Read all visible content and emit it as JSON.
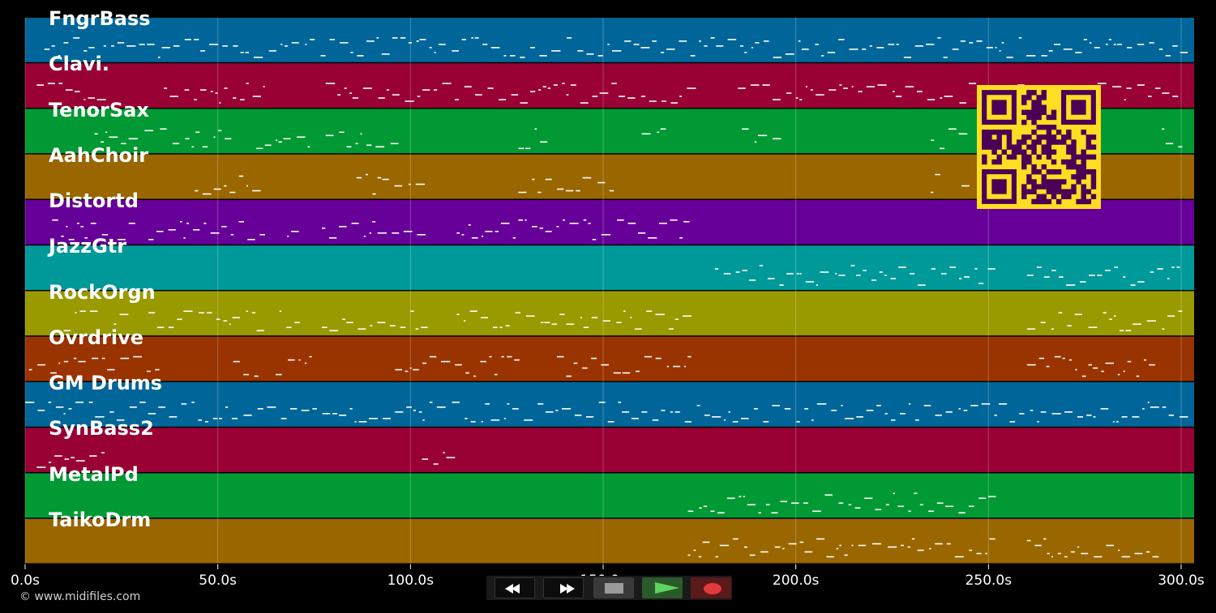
{
  "tracks": [
    {
      "name": "FngrBass",
      "color": "#006699"
    },
    {
      "name": "Clavi.",
      "color": "#990033"
    },
    {
      "name": "TenorSax",
      "color": "#009933"
    },
    {
      "name": "AahChoir",
      "color": "#996600"
    },
    {
      "name": "Distortd",
      "color": "#660099"
    },
    {
      "name": "JazzGtr",
      "color": "#009999"
    },
    {
      "name": "RockOrgn",
      "color": "#999900"
    },
    {
      "name": "Ovrdrive",
      "color": "#993300"
    },
    {
      "name": "GM Drums",
      "color": "#006699"
    },
    {
      "name": "SynBass2",
      "color": "#990033"
    },
    {
      "name": "MetalPd",
      "color": "#009933"
    },
    {
      "name": "TaikoDrm",
      "color": "#996600"
    }
  ],
  "timeline": {
    "ticks": [
      {
        "value": 0,
        "label": "0.0s"
      },
      {
        "value": 50,
        "label": "50.0s"
      },
      {
        "value": 100,
        "label": "100.0s"
      },
      {
        "value": 150,
        "label": "150.0s"
      },
      {
        "value": 200,
        "label": "200.0s"
      },
      {
        "value": 250,
        "label": "250.0s"
      },
      {
        "value": 300,
        "label": "300.0s"
      }
    ],
    "max_seconds": 303
  },
  "copyright": "© www.midifiles.com",
  "transport": {
    "rewind_icon": "rewind-icon",
    "forward_icon": "fast-forward-icon",
    "stop_icon": "stop-icon",
    "play_icon": "play-icon",
    "record_icon": "record-icon"
  },
  "colors": {
    "qr_fg": "#4b0055",
    "qr_bg": "#ffdd22",
    "note": "#ffffff"
  }
}
